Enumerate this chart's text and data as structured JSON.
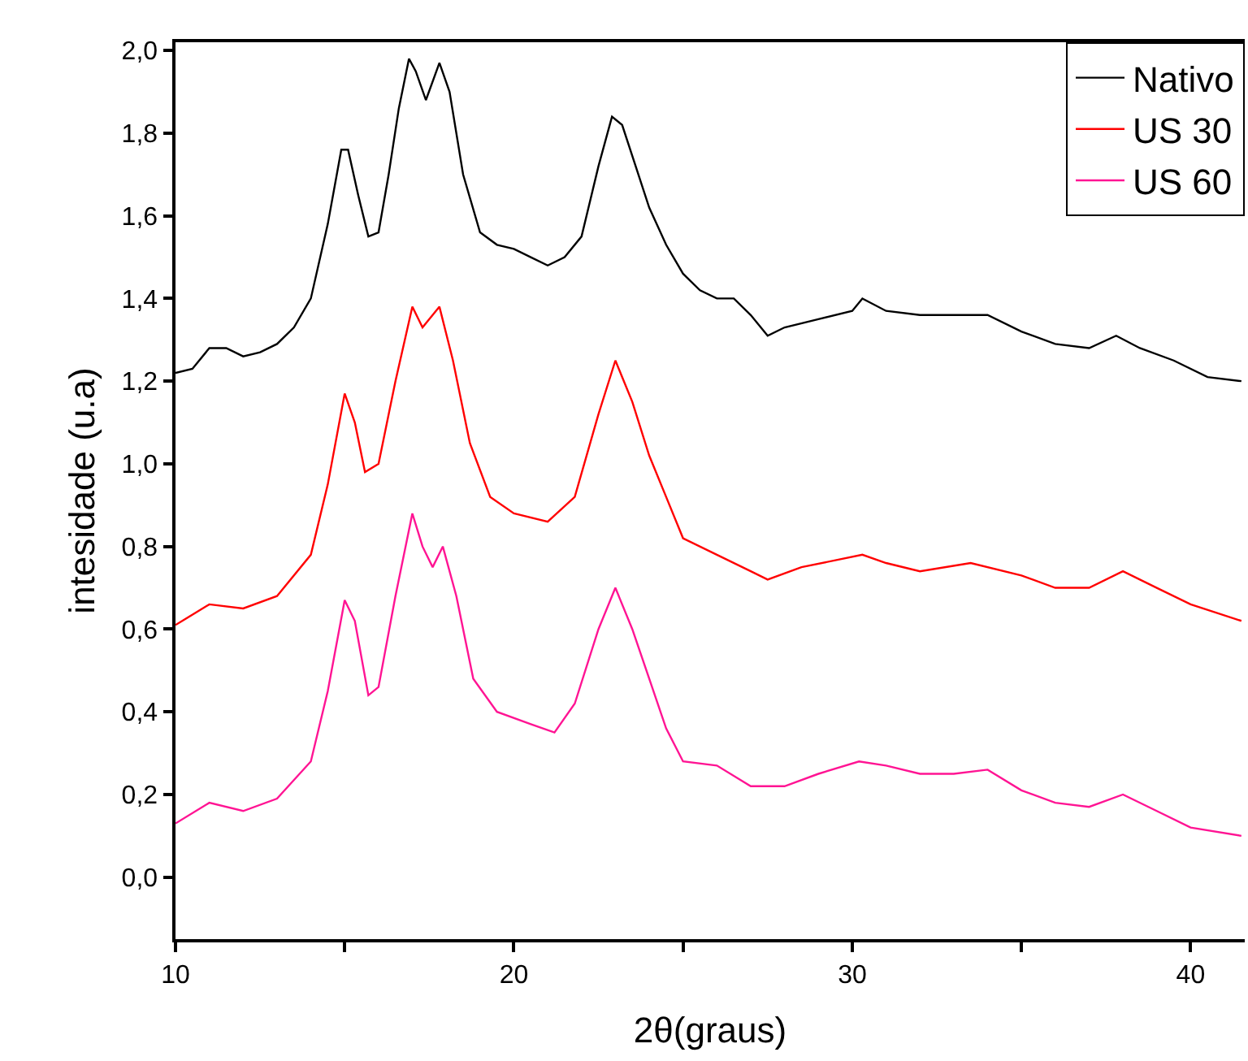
{
  "chart_data": {
    "type": "line",
    "xlabel": "2θ(graus)",
    "ylabel": "intesidade (u.a)",
    "xlim": [
      10,
      41.6
    ],
    "ylim": [
      -0.15,
      2.02
    ],
    "xticks": [
      10,
      {
        "value": 15,
        "label": null
      },
      20,
      {
        "value": 25,
        "label": null
      },
      30,
      {
        "value": 35,
        "label": null
      },
      40
    ],
    "yticks": [
      {
        "value": 0,
        "label": "0,0"
      },
      {
        "value": 0.2,
        "label": "0,2"
      },
      {
        "value": 0.4,
        "label": "0,4"
      },
      {
        "value": 0.6,
        "label": "0,6"
      },
      {
        "value": 0.8,
        "label": "0,8"
      },
      {
        "value": 1.0,
        "label": "1,0"
      },
      {
        "value": 1.2,
        "label": "1,2"
      },
      {
        "value": 1.4,
        "label": "1,4"
      },
      {
        "value": 1.6,
        "label": "1,6"
      },
      {
        "value": 1.8,
        "label": "1,8"
      },
      {
        "value": 2.0,
        "label": "2,0"
      }
    ],
    "legend": "top right",
    "line_style": "solid",
    "series": [
      {
        "name": "Nativo",
        "color": "#000000",
        "x": [
          10,
          10.5,
          11,
          11.5,
          12,
          12.5,
          13,
          13.5,
          14,
          14.5,
          14.9,
          15.1,
          15.4,
          15.7,
          16.0,
          16.3,
          16.6,
          16.9,
          17.1,
          17.4,
          17.8,
          18.1,
          18.5,
          19.0,
          19.5,
          20.0,
          20.5,
          21.0,
          21.5,
          22.0,
          22.5,
          22.9,
          23.2,
          23.6,
          24.0,
          24.5,
          25.0,
          25.5,
          26,
          26.5,
          27,
          27.5,
          28,
          29,
          30,
          30.3,
          31,
          32,
          33,
          34,
          35,
          36,
          37,
          37.8,
          38.5,
          39.5,
          40.5,
          41.5
        ],
        "values": [
          1.22,
          1.23,
          1.28,
          1.28,
          1.26,
          1.27,
          1.29,
          1.33,
          1.4,
          1.58,
          1.76,
          1.76,
          1.65,
          1.55,
          1.56,
          1.7,
          1.86,
          1.98,
          1.95,
          1.88,
          1.97,
          1.9,
          1.7,
          1.56,
          1.53,
          1.52,
          1.5,
          1.48,
          1.5,
          1.55,
          1.72,
          1.84,
          1.82,
          1.72,
          1.62,
          1.53,
          1.46,
          1.42,
          1.4,
          1.4,
          1.36,
          1.31,
          1.33,
          1.35,
          1.37,
          1.4,
          1.37,
          1.36,
          1.36,
          1.36,
          1.32,
          1.29,
          1.28,
          1.31,
          1.28,
          1.25,
          1.21,
          1.2
        ]
      },
      {
        "name": "US 30",
        "color": "#ff0000",
        "x": [
          10,
          11,
          12,
          13,
          14,
          14.5,
          15,
          15.3,
          15.6,
          16,
          16.5,
          17,
          17.3,
          17.8,
          18.2,
          18.7,
          19.3,
          20,
          21,
          21.8,
          22.5,
          23,
          23.5,
          24,
          24.5,
          25,
          26,
          27,
          27.5,
          28.5,
          30.3,
          31,
          32,
          33.5,
          35,
          36,
          37,
          38,
          39,
          40,
          41.5
        ],
        "values": [
          0.61,
          0.66,
          0.65,
          0.68,
          0.78,
          0.95,
          1.17,
          1.1,
          0.98,
          1.0,
          1.2,
          1.38,
          1.33,
          1.38,
          1.25,
          1.05,
          0.92,
          0.88,
          0.86,
          0.92,
          1.12,
          1.25,
          1.15,
          1.02,
          0.92,
          0.82,
          0.78,
          0.74,
          0.72,
          0.75,
          0.78,
          0.76,
          0.74,
          0.76,
          0.73,
          0.7,
          0.7,
          0.74,
          0.7,
          0.66,
          0.62
        ]
      },
      {
        "name": "US 60",
        "color": "#ff1493",
        "x": [
          10,
          11,
          12,
          13,
          14,
          14.5,
          15,
          15.3,
          15.7,
          16,
          16.5,
          17,
          17.3,
          17.6,
          17.9,
          18.3,
          18.8,
          19.5,
          20.5,
          21.2,
          21.8,
          22.5,
          23,
          23.5,
          24,
          24.5,
          25,
          26,
          27,
          28,
          29,
          30.2,
          31,
          32,
          33,
          34,
          35,
          36,
          37,
          38,
          39,
          40,
          41.5
        ],
        "values": [
          0.13,
          0.18,
          0.16,
          0.19,
          0.28,
          0.45,
          0.67,
          0.62,
          0.44,
          0.46,
          0.68,
          0.88,
          0.8,
          0.75,
          0.8,
          0.68,
          0.48,
          0.4,
          0.37,
          0.35,
          0.42,
          0.6,
          0.7,
          0.6,
          0.48,
          0.36,
          0.28,
          0.27,
          0.22,
          0.22,
          0.25,
          0.28,
          0.27,
          0.25,
          0.25,
          0.26,
          0.21,
          0.18,
          0.17,
          0.2,
          0.16,
          0.12,
          0.1
        ]
      }
    ]
  }
}
